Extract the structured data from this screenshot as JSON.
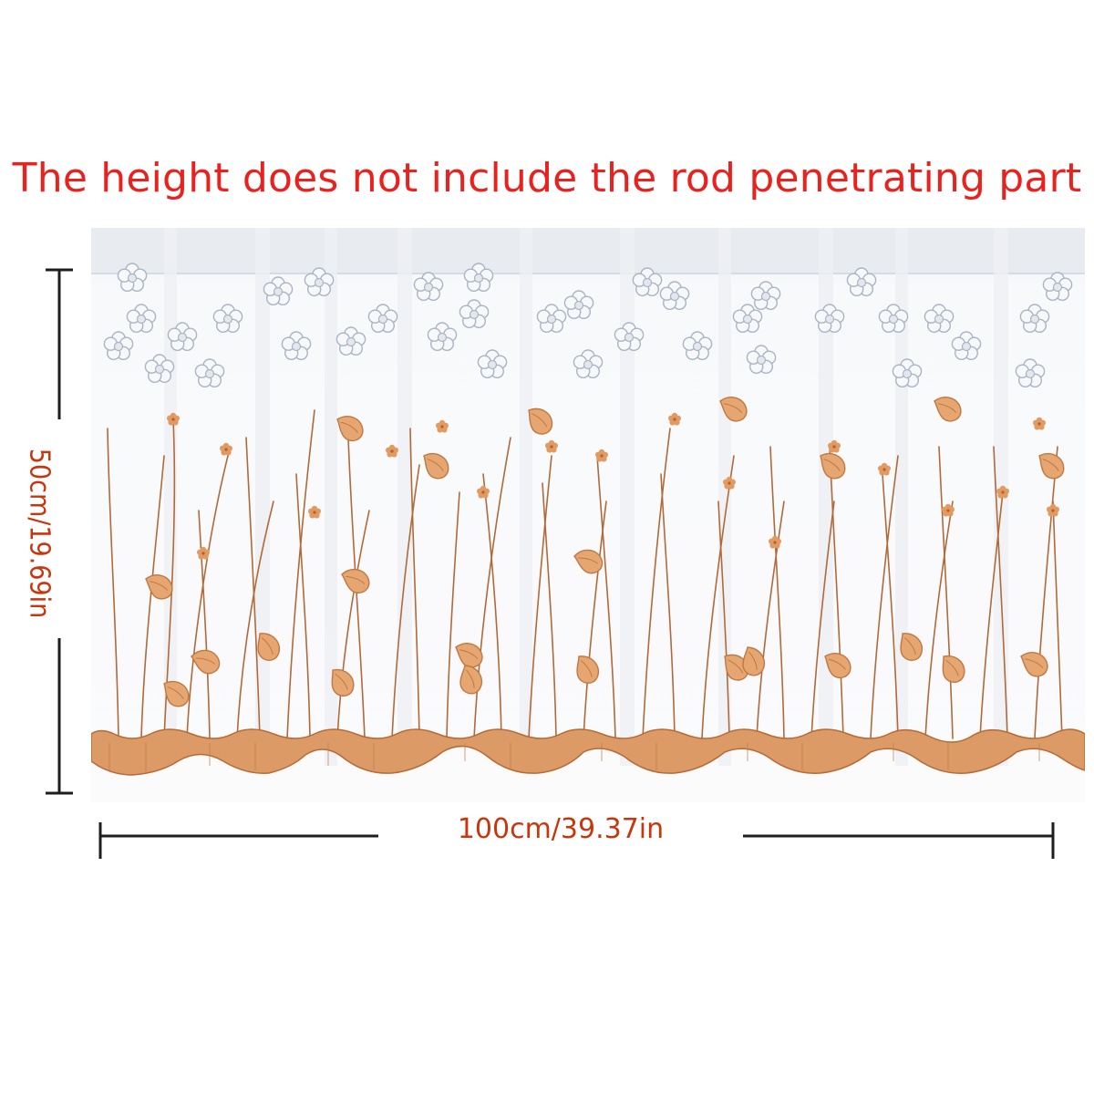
{
  "headline": "The height does not include the rod penetrating part",
  "dimensions": {
    "height_label": "50cm/19.69in",
    "width_label": "100cm/39.37in"
  },
  "colors": {
    "headline": "#e8231f",
    "dimension_text": "#c9360d",
    "dimension_line": "#1e1e1e",
    "embroidery_orange": "#d8884a",
    "embroidery_stem": "#b06a3a",
    "flower_gray": "#b8c1cf"
  }
}
